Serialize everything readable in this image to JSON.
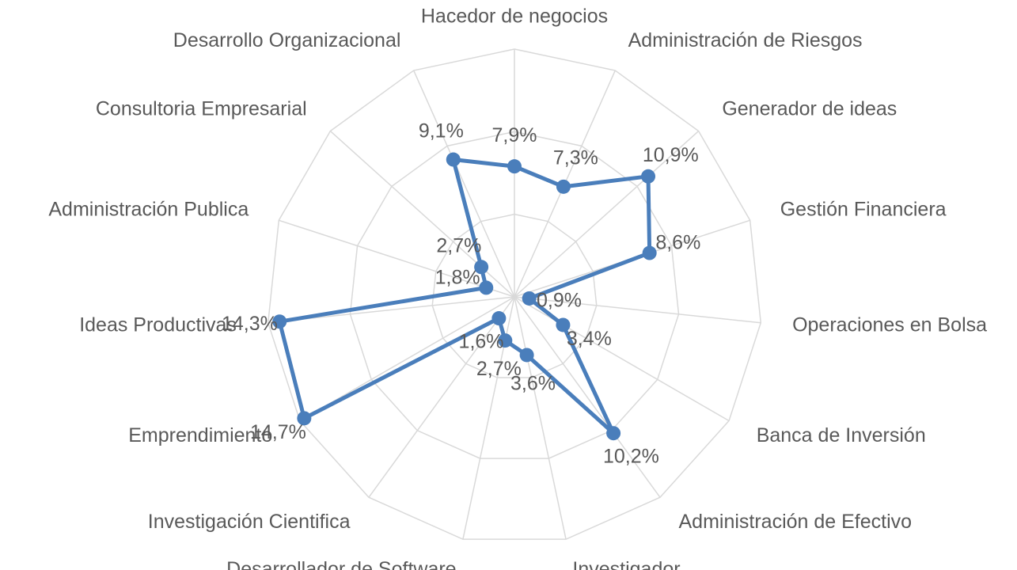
{
  "chart_data": {
    "type": "radar",
    "categories": [
      "Hacedor de negocios",
      "Administración de Riesgos",
      "Generador de ideas",
      "Gestión Financiera",
      "Operaciones en Bolsa",
      "Banca de Inversión",
      "Administración de Efectivo",
      "Investigador",
      "Desarrollador de Software",
      "Investigación Cientifica",
      "Emprendimiento",
      "Ideas Productivas",
      "Administración Publica",
      "Consultoria Empresarial",
      "Desarrollo Organizacional"
    ],
    "values": [
      7.9,
      7.3,
      10.9,
      8.6,
      0.9,
      3.4,
      10.2,
      3.6,
      2.7,
      1.6,
      14.7,
      14.3,
      1.8,
      2.7,
      9.1
    ],
    "value_labels": [
      "7,9%",
      "7,3%",
      "10,9%",
      "8,6%",
      "0,9%",
      "3,4%",
      "10,2%",
      "3,6%",
      "2,7%",
      "1,6%",
      "14,7%",
      "14,3%",
      "1,8%",
      "2,7%",
      "9,1%"
    ],
    "color": "#4a7ebb",
    "rlim": [
      0,
      15
    ],
    "rticks": [
      5,
      10,
      15
    ],
    "grid": true
  }
}
